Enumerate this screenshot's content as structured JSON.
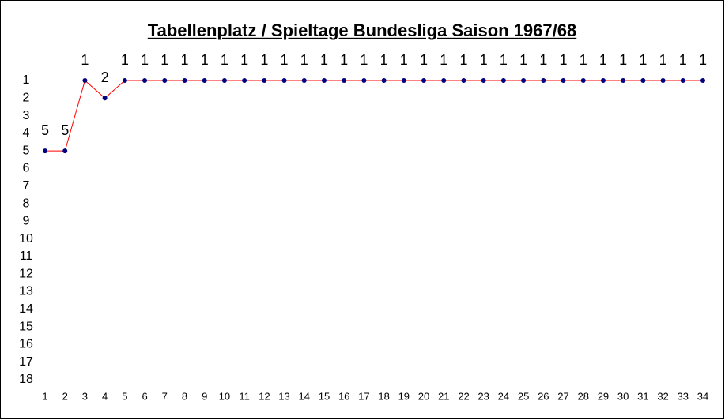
{
  "chart_data": {
    "type": "line",
    "title": "Tabellenplatz / Spieltage  Bundesliga Saison 1967/68",
    "categories": [
      "1",
      "2",
      "3",
      "4",
      "5",
      "6",
      "7",
      "8",
      "9",
      "10",
      "11",
      "12",
      "13",
      "14",
      "15",
      "16",
      "17",
      "18",
      "19",
      "20",
      "21",
      "22",
      "23",
      "24",
      "25",
      "26",
      "27",
      "28",
      "29",
      "30",
      "31",
      "32",
      "33",
      "34"
    ],
    "values": [
      5,
      5,
      1,
      2,
      1,
      1,
      1,
      1,
      1,
      1,
      1,
      1,
      1,
      1,
      1,
      1,
      1,
      1,
      1,
      1,
      1,
      1,
      1,
      1,
      1,
      1,
      1,
      1,
      1,
      1,
      1,
      1,
      1,
      1
    ],
    "color": "#ff0000",
    "marker_color": "#000080",
    "ylim": [
      1,
      18
    ],
    "y_reversed": true,
    "yticks": [
      1,
      2,
      3,
      4,
      5,
      6,
      7,
      8,
      9,
      10,
      11,
      12,
      13,
      14,
      15,
      16,
      17,
      18
    ],
    "grid": false,
    "data_labels": true
  }
}
